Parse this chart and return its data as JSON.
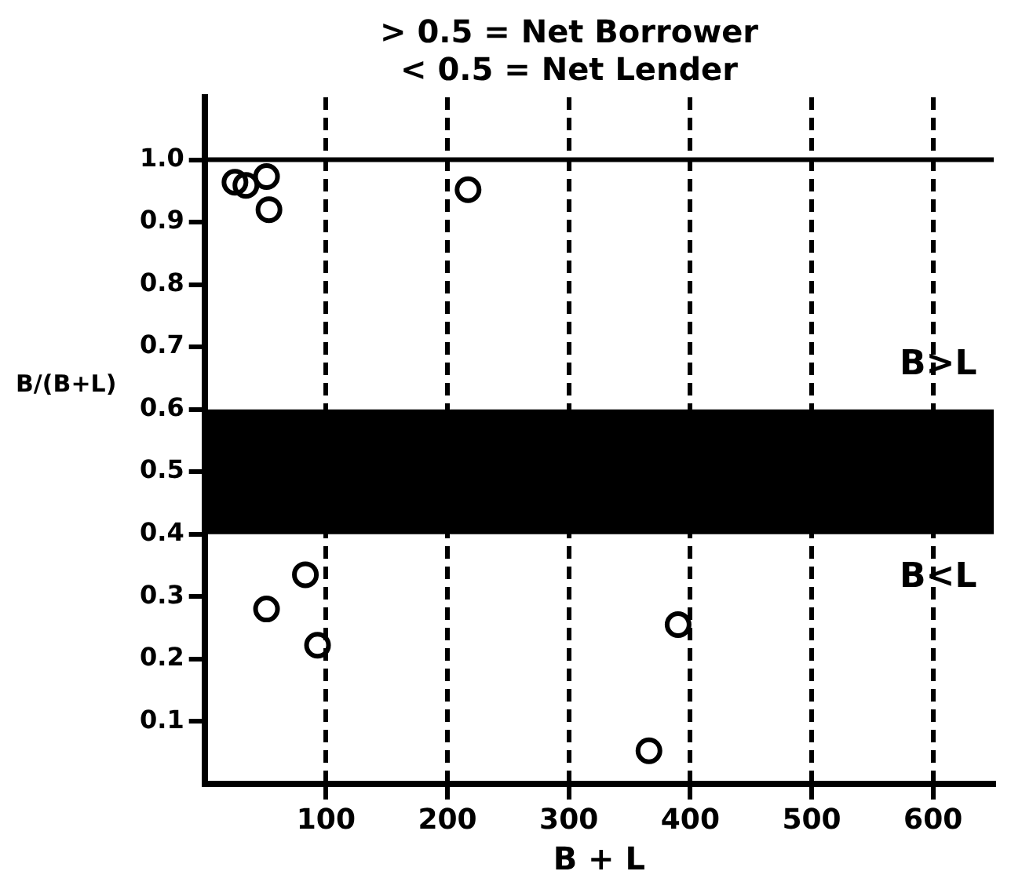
{
  "chart_data": {
    "type": "scatter",
    "title": "> 0.5 = Net Borrower",
    "subtitle": "< 0.5 = Net Lender",
    "xlabel": "B + L",
    "ylabel": "B/(B+L)",
    "series": [
      {
        "color": "#000000",
        "x": [
          25,
          34,
          51,
          53,
          217,
          83,
          51,
          93,
          390,
          366
        ],
        "values": [
          0.964,
          0.959,
          0.973,
          0.92,
          0.952,
          0.335,
          0.28,
          0.222,
          0.255,
          0.053
        ]
      }
    ],
    "xlim": [
      0,
      650
    ],
    "xticks": [
      100,
      200,
      300,
      400,
      500,
      600
    ],
    "ylim": [
      0,
      1.1
    ],
    "yticks": [
      {
        "value": 0.1,
        "label": "0.1"
      },
      {
        "value": 0.2,
        "label": "0.2"
      },
      {
        "value": 0.3,
        "label": "0.3"
      },
      {
        "value": 0.4,
        "label": "0.4"
      },
      {
        "value": 0.5,
        "label": "0.5"
      },
      {
        "value": 0.6,
        "label": "0.6"
      },
      {
        "value": 0.7,
        "label": "0.7"
      },
      {
        "value": 0.8,
        "label": "0.8"
      },
      {
        "value": 0.9,
        "label": "0.9"
      },
      {
        "value": 1,
        "label": "1.0"
      }
    ],
    "grid": "x",
    "marker": "circle",
    "ref_lines": [
      {
        "axis": "y",
        "value": 1,
        "color": "#000000",
        "line_style": "solid"
      }
    ],
    "bands": [
      {
        "axis": "y",
        "from": 0.4,
        "to": 0.6,
        "color": "#000000"
      }
    ],
    "annotations": [
      "B>L",
      "B<L"
    ]
  }
}
